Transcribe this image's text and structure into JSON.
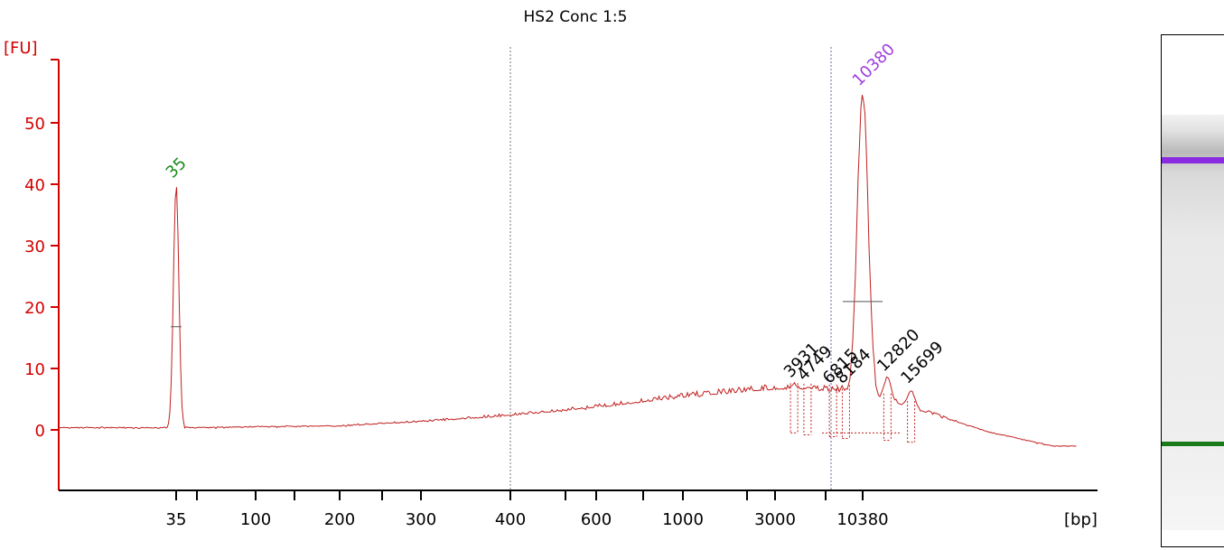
{
  "chart_data": {
    "type": "line",
    "title": "HS2 Conc 1:5",
    "ylabel": "[FU]",
    "xlabel": "[bp]",
    "ylim": [
      -10,
      60
    ],
    "y_ticks": [
      "0",
      "10",
      "20",
      "30",
      "40",
      "50"
    ],
    "x_tick_labels": [
      "35",
      "100",
      "200",
      "300",
      "400",
      "600",
      "1000",
      "3000",
      "10380"
    ],
    "colors": {
      "axis": "#d40000",
      "trace": "#c02020",
      "lower_marker": "#1a8a1a",
      "upper_marker": "#a040e0",
      "text": "#000000"
    },
    "grid": false,
    "peaks": [
      {
        "label": "35",
        "size_bp": 35,
        "height_fu": 40,
        "kind": "lower-marker"
      },
      {
        "label": "10380",
        "size_bp": 10380,
        "height_fu": 55,
        "kind": "upper-marker"
      },
      {
        "label": "3931",
        "size_bp": 3931,
        "height_fu": 7.5
      },
      {
        "label": "4749",
        "size_bp": 4749,
        "height_fu": 7
      },
      {
        "label": "6815",
        "size_bp": 6815,
        "height_fu": 6.5
      },
      {
        "label": "8184",
        "size_bp": 8184,
        "height_fu": 6.5
      },
      {
        "label": "12820",
        "size_bp": 12820,
        "height_fu": 8.5
      },
      {
        "label": "15699",
        "size_bp": 15699,
        "height_fu": 6.5
      }
    ],
    "baseline_profile": [
      {
        "x": 35,
        "y": 0.2
      },
      {
        "x": 200,
        "y": 0.5
      },
      {
        "x": 300,
        "y": 1.2
      },
      {
        "x": 400,
        "y": 2.2
      },
      {
        "x": 600,
        "y": 3.5
      },
      {
        "x": 1000,
        "y": 5.2
      },
      {
        "x": 3000,
        "y": 6.5
      },
      {
        "x": 10380,
        "y": 6
      },
      {
        "x": 17000,
        "y": 3
      },
      {
        "x": 30000,
        "y": -0.5
      },
      {
        "x": 50000,
        "y": -2.8
      }
    ]
  },
  "gel": {
    "bands": [
      {
        "name": "upper-marker",
        "color": "#8a2be2"
      },
      {
        "name": "lower-marker",
        "color": "#1a7a1a"
      }
    ]
  }
}
